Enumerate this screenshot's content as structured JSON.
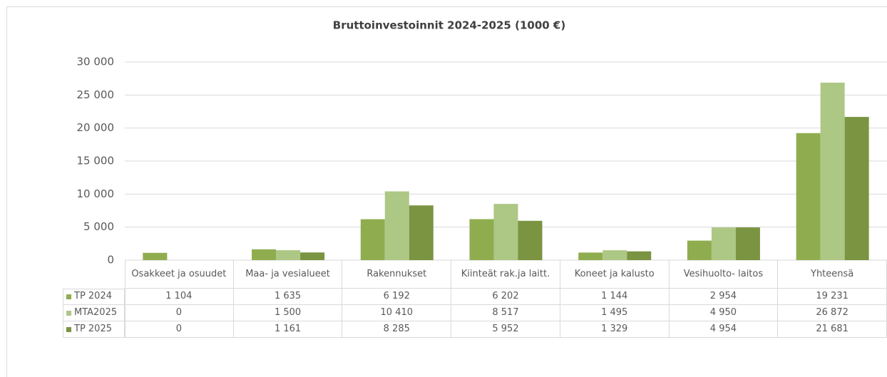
{
  "chart_data": {
    "type": "bar",
    "title": "Bruttoinvestoinnit 2024-2025 (1000 €)",
    "categories": [
      "Osakkeet ja osuudet",
      "Maa- ja vesialueet",
      "Rakennukset",
      "Kiinteät rak.ja laitt.",
      "Koneet ja kalusto",
      "Vesihuolto- laitos",
      "Yhteensä"
    ],
    "series": [
      {
        "name": "TP 2024",
        "color": "#8fad4f",
        "values": [
          1104,
          1635,
          6192,
          6202,
          1144,
          2954,
          19231
        ],
        "value_labels": [
          "1 104",
          "1 635",
          "6 192",
          "6 202",
          "1 144",
          "2 954",
          "19 231"
        ]
      },
      {
        "name": "MTA2025",
        "color": "#adc785",
        "values": [
          0,
          1500,
          10410,
          8517,
          1495,
          4950,
          26872
        ],
        "value_labels": [
          "0",
          "1 500",
          "10 410",
          "8 517",
          "1 495",
          "4 950",
          "26 872"
        ]
      },
      {
        "name": "TP 2025",
        "color": "#7a9441",
        "values": [
          0,
          1161,
          8285,
          5952,
          1329,
          4954,
          21681
        ],
        "value_labels": [
          "0",
          "1 161",
          "8 285",
          "5 952",
          "1 329",
          "4 954",
          "21 681"
        ]
      }
    ],
    "ylim": [
      0,
      30000
    ],
    "yticks": [
      0,
      {
        "value": 5000,
        "label": "5 000"
      },
      {
        "value": 10000,
        "label": "10 000"
      },
      {
        "value": 15000,
        "label": "15 000"
      },
      {
        "value": 20000,
        "label": "20 000"
      },
      {
        "value": 25000,
        "label": "25 000"
      },
      {
        "value": 30000,
        "label": "30 000"
      }
    ],
    "grid": true
  }
}
